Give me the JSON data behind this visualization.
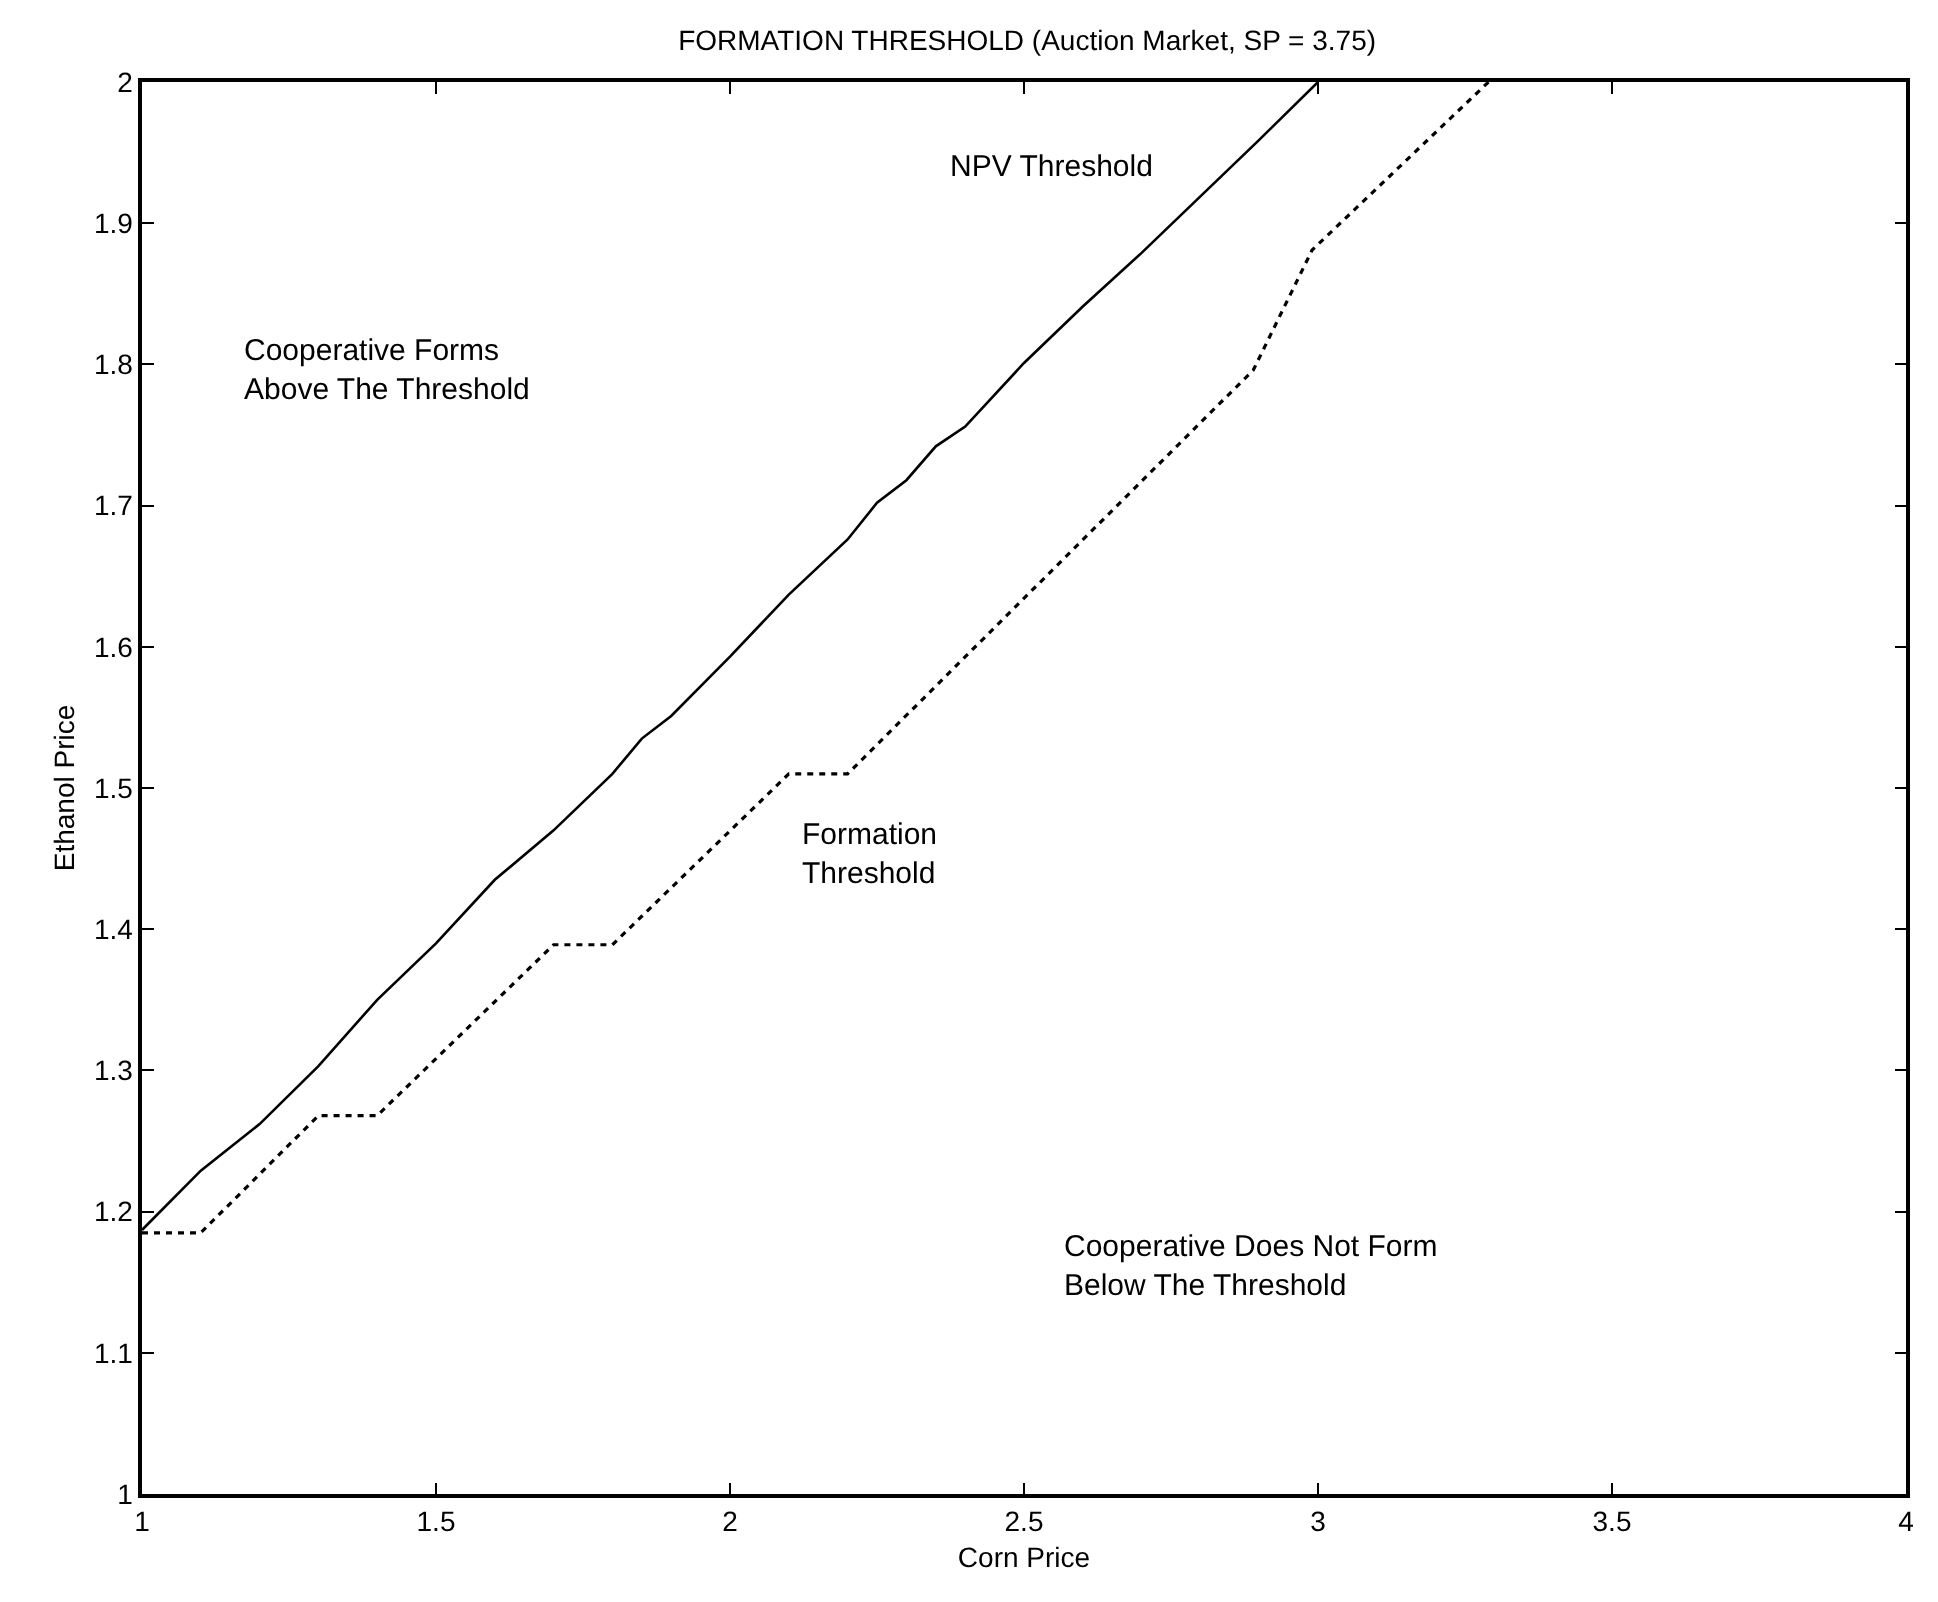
{
  "chart_data": {
    "type": "line",
    "title": "FORMATION THRESHOLD (Auction Market, SP = 3.75)",
    "xlabel": "Corn Price",
    "ylabel": "Ethanol Price",
    "xlim": [
      1,
      4
    ],
    "xticks": [
      1,
      1.5,
      2,
      2.5,
      3,
      3.5,
      4
    ],
    "ylim": [
      1,
      2
    ],
    "yticks": [
      1,
      1.1,
      1.2,
      1.3,
      1.4,
      1.5,
      1.6,
      1.7,
      1.8,
      1.9,
      2
    ],
    "grid": false,
    "marker": "none",
    "series": [
      {
        "color": "#000000",
        "line_style": "solid",
        "x": [
          1,
          1.1,
          1.2,
          1.3,
          1.4,
          1.5,
          1.6,
          1.7,
          1.8,
          1.85,
          1.9,
          2,
          2.1,
          2.2,
          2.25,
          2.3,
          2.35,
          2.4,
          2.5,
          2.6,
          2.7,
          2.8,
          2.9,
          3
        ],
        "values": [
          1.187,
          1.229,
          1.262,
          1.303,
          1.35,
          1.39,
          1.435,
          1.47,
          1.51,
          1.535,
          1.551,
          1.593,
          1.637,
          1.676,
          1.702,
          1.718,
          1.742,
          1.756,
          1.801,
          1.841,
          1.879,
          1.919,
          1.959,
          2
        ]
      },
      {
        "color": "#000000",
        "line_style": "dotted",
        "x": [
          1,
          1.1,
          1.3,
          1.4,
          1.7,
          1.8,
          2.1,
          2.2,
          2.89,
          2.99,
          3.29
        ],
        "values": [
          1.185,
          1.185,
          1.268,
          1.268,
          1.389,
          1.389,
          1.51,
          1.51,
          1.796,
          1.881,
          2
        ]
      }
    ],
    "annotations": [
      "NPV Threshold",
      "Cooperative Forms\nAbove The Threshold",
      "Formation\nThreshold",
      "Cooperative Does Not Form\nBelow The Threshold"
    ]
  }
}
